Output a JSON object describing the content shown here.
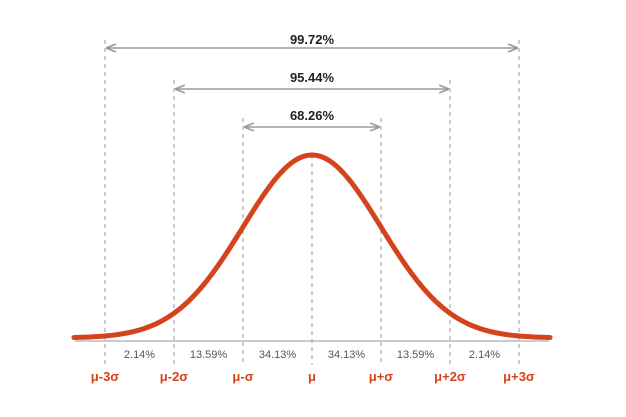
{
  "chart_data": {
    "type": "area",
    "distribution": "normal",
    "ranges": [
      {
        "label": "68.26%",
        "from": "μ-σ",
        "to": "μ+σ"
      },
      {
        "label": "95.44%",
        "from": "μ-2σ",
        "to": "μ+2σ"
      },
      {
        "label": "99.72%",
        "from": "μ-3σ",
        "to": "μ+3σ"
      }
    ],
    "segments": [
      {
        "label": "2.14%",
        "from": -3,
        "to": -2
      },
      {
        "label": "13.59%",
        "from": -2,
        "to": -1
      },
      {
        "label": "34.13%",
        "from": -1,
        "to": 0
      },
      {
        "label": "34.13%",
        "from": 0,
        "to": 1
      },
      {
        "label": "13.59%",
        "from": 1,
        "to": 2
      },
      {
        "label": "2.14%",
        "from": 2,
        "to": 3
      }
    ],
    "tick_labels": [
      "μ-3σ",
      "μ-2σ",
      "μ-σ",
      "μ",
      "μ+σ",
      "μ+2σ",
      "μ+3σ"
    ],
    "tick_values": [
      -3,
      -2,
      -1,
      0,
      1,
      2,
      3
    ],
    "xlim": [
      -3.45,
      3.45
    ],
    "colors": {
      "curve": "#d4431c",
      "sigma_labels": "#d4431c",
      "guides": "#9a9a9a",
      "range_arrows": "#9a9a9a",
      "percent_text": "#555555",
      "range_text": "#222222"
    }
  }
}
